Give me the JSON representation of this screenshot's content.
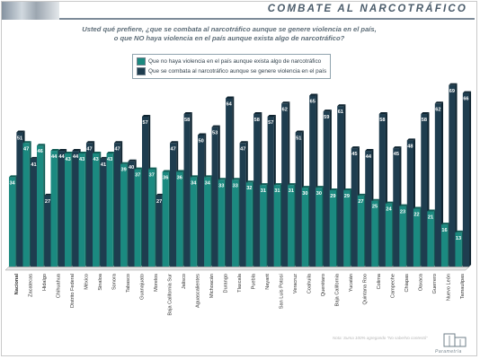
{
  "header": {
    "title": "COMBATE AL NARCOTRÁFICO"
  },
  "question": {
    "line1": "Usted qué prefiere, ¿que se combata al narcotráfico aunque se genere violencia en el país,",
    "line2": "o que NO haya violencia en el país aunque exista algo de narcotráfico?"
  },
  "footer": {
    "note": "Nota: Suma 100% agregando \"No sabe/No contestó\"",
    "brand": "Parametría"
  },
  "colors": {
    "series1": "#1b8a80",
    "series2": "#1e3d4f",
    "axis": "#555555"
  },
  "chart_data": {
    "type": "bar",
    "categories": [
      "Nacional",
      "Zacatecas",
      "Hidalgo",
      "Chihuahua",
      "Distrito Federal",
      "México",
      "Sinaloa",
      "Sonora",
      "Tabasco",
      "Guanajuato",
      "Morelos",
      "Baja California Sur",
      "Jalisco",
      "Aguascalientes",
      "Michoacán",
      "Durango",
      "Tlaxcala",
      "Puebla",
      "Nayarit",
      "San Luis Potosí",
      "Veracruz",
      "Coahuila",
      "Querétaro",
      "Baja California",
      "Yucatán",
      "Quintana Roo",
      "Colima",
      "Campeche",
      "Chiapas",
      "Oaxaca",
      "Guerrero",
      "Nuevo León",
      "Tamaulipas"
    ],
    "series": [
      {
        "name": "Que no haya violencia en el país aunque exista algo de narcotráfico",
        "values": [
          34,
          47,
          46,
          44,
          43,
          43,
          43,
          43,
          39,
          37,
          37,
          36,
          36,
          34,
          34,
          33,
          33,
          32,
          31,
          31,
          31,
          30,
          30,
          29,
          29,
          27,
          25,
          24,
          23,
          22,
          21,
          16,
          13
        ]
      },
      {
        "name": "Que se combata al narcotráfico aunque se genere violencia en el país",
        "values": [
          51,
          41,
          27,
          44,
          44,
          47,
          41,
          47,
          40,
          57,
          27,
          47,
          58,
          50,
          53,
          64,
          47,
          58,
          57,
          62,
          51,
          65,
          59,
          61,
          45,
          44,
          58,
          45,
          48,
          58,
          62,
          69,
          66
        ]
      }
    ],
    "ylim": [
      0,
      72
    ],
    "grid": false,
    "legend": "top-left"
  }
}
